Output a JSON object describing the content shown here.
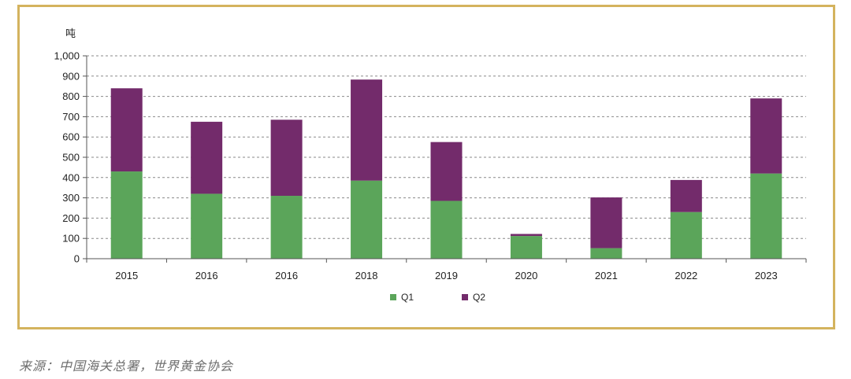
{
  "source_note": "来源：中国海关总署，世界黄金协会",
  "colors": {
    "frame": "#d4b35e",
    "q1": "#5ba55a",
    "q2": "#732b6b"
  },
  "chart_data": {
    "type": "bar",
    "stacked": true,
    "unit_label": "吨",
    "categories": [
      "2015",
      "2016",
      "2016",
      "2018",
      "2019",
      "2020",
      "2021",
      "2022",
      "2023"
    ],
    "series": [
      {
        "name": "Q1",
        "values": [
          430,
          320,
          310,
          385,
          285,
          112,
          52,
          230,
          420
        ]
      },
      {
        "name": "Q2",
        "values": [
          410,
          355,
          375,
          498,
          290,
          10,
          250,
          158,
          370
        ]
      }
    ],
    "ylim": [
      0,
      1000
    ],
    "yticks": [
      0,
      100,
      200,
      300,
      400,
      500,
      600,
      700,
      800,
      900,
      1000
    ],
    "ytick_labels": [
      "0",
      "100",
      "200",
      "300",
      "400",
      "500",
      "600",
      "700",
      "800",
      "900",
      "1,000"
    ],
    "grid": true,
    "legend_position": "bottom-center"
  }
}
